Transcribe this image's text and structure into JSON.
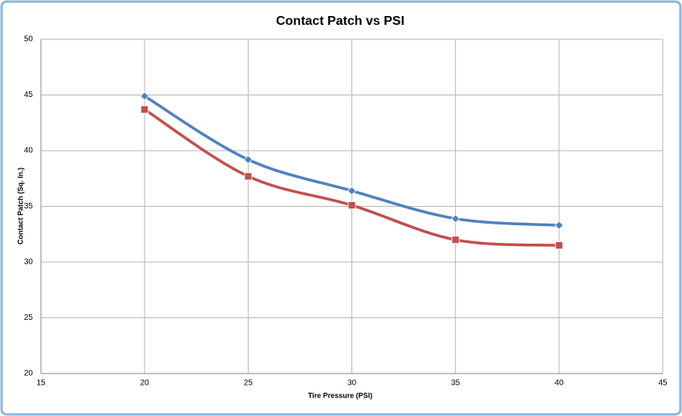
{
  "chart_data": {
    "type": "line",
    "title": "Contact Patch vs PSI",
    "x_label": "Tire Pressure (PSI)",
    "y_label": "Contact Patch (Sq. In.)",
    "x": [
      20,
      25,
      30,
      35,
      40
    ],
    "series": [
      {
        "color": "#4f81bd",
        "marker": "diamond",
        "values": [
          44.9,
          39.2,
          36.4,
          33.9,
          33.3
        ]
      },
      {
        "color": "#c0504d",
        "marker": "square",
        "values": [
          43.7,
          37.7,
          35.1,
          32.0,
          31.5
        ]
      }
    ],
    "xlim": [
      15,
      45
    ],
    "xticks": [
      15,
      20,
      25,
      30,
      35,
      40,
      45
    ],
    "ylim": [
      20,
      50
    ],
    "yticks": [
      20,
      25,
      30,
      35,
      40,
      45,
      50
    ],
    "grid": true,
    "smooth": true
  }
}
